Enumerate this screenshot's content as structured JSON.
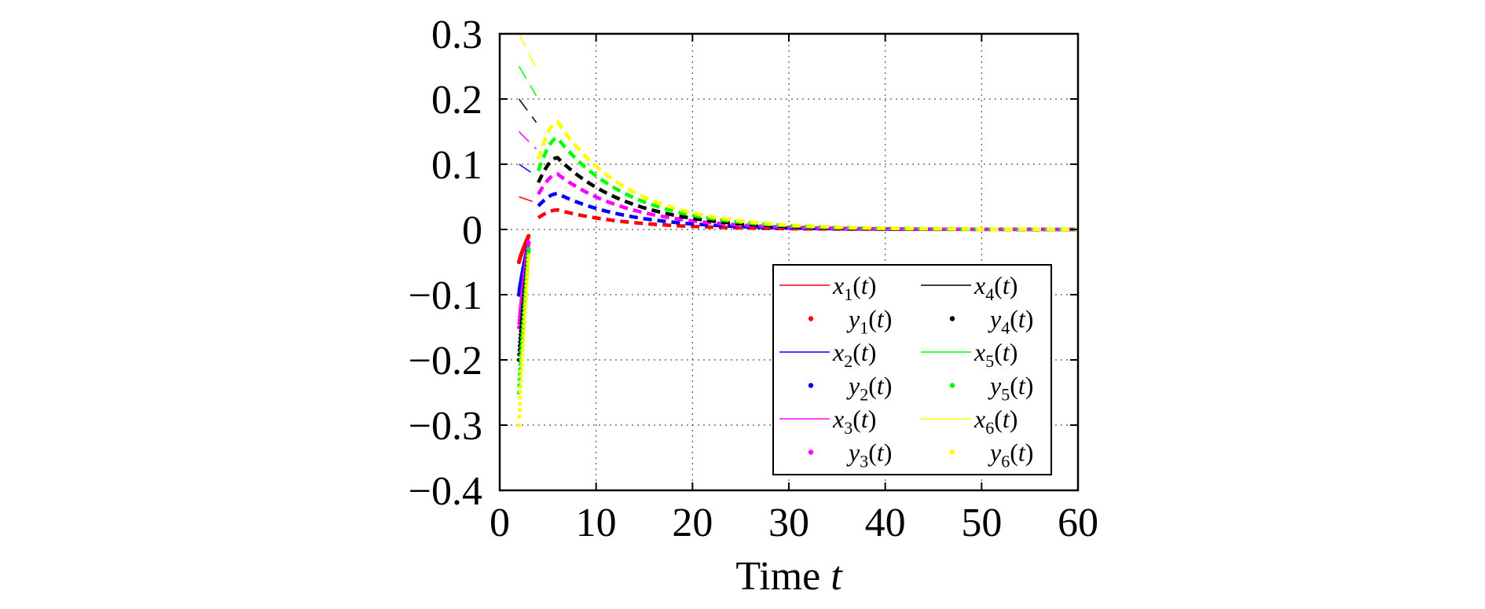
{
  "chart_data": {
    "type": "line",
    "xlabel": "Time",
    "xlabel_var": "t",
    "xlim": [
      0,
      60
    ],
    "ylim": [
      -0.4,
      0.3
    ],
    "x_ticks": [
      0,
      10,
      20,
      30,
      40,
      50,
      60
    ],
    "x_tick_labels": [
      "0",
      "10",
      "20",
      "30",
      "40",
      "50",
      "60"
    ],
    "y_ticks": [
      0.3,
      0.2,
      0.1,
      0,
      -0.1,
      -0.2,
      -0.3,
      -0.4
    ],
    "y_tick_labels": [
      "0.3",
      "0.2",
      "0.1",
      "0",
      "−0.1",
      "−0.2",
      "−0.3",
      "−0.4"
    ],
    "grid": true,
    "legend_position": "lower-right",
    "series": [
      {
        "name": "x1(t)",
        "legend_var": "x",
        "legend_sub": "1",
        "legend_arg": "t",
        "style": "line",
        "color": "#ff0000",
        "x0": 2,
        "y0": 0.05,
        "x1": 4,
        "y1": 0.04,
        "peak_t": 6,
        "peak_y": 0.03
      },
      {
        "name": "x2(t)",
        "legend_var": "x",
        "legend_sub": "2",
        "legend_arg": "t",
        "style": "line",
        "color": "#0000ff",
        "x0": 2,
        "y0": 0.1,
        "x1": 4,
        "y1": 0.08,
        "peak_t": 6,
        "peak_y": 0.055
      },
      {
        "name": "x3(t)",
        "legend_var": "x",
        "legend_sub": "3",
        "legend_arg": "t",
        "style": "line",
        "color": "#ff00ff",
        "x0": 2,
        "y0": 0.15,
        "x1": 4,
        "y1": 0.12,
        "peak_t": 6,
        "peak_y": 0.085
      },
      {
        "name": "x4(t)",
        "legend_var": "x",
        "legend_sub": "4",
        "legend_arg": "t",
        "style": "line",
        "color": "#000000",
        "x0": 2,
        "y0": 0.2,
        "x1": 4,
        "y1": 0.16,
        "peak_t": 6,
        "peak_y": 0.11
      },
      {
        "name": "x5(t)",
        "legend_var": "x",
        "legend_sub": "5",
        "legend_arg": "t",
        "style": "line",
        "color": "#00ff00",
        "x0": 2,
        "y0": 0.25,
        "x1": 4,
        "y1": 0.2,
        "peak_t": 6,
        "peak_y": 0.14
      },
      {
        "name": "x6(t)",
        "legend_var": "x",
        "legend_sub": "6",
        "legend_arg": "t",
        "style": "line",
        "color": "#ffff00",
        "x0": 2,
        "y0": 0.3,
        "x1": 4,
        "y1": 0.24,
        "peak_t": 6,
        "peak_y": 0.165
      },
      {
        "name": "y1(t)",
        "legend_var": "y",
        "legend_sub": "1",
        "legend_arg": "t",
        "style": "dots",
        "color": "#ff0000",
        "x0": 2,
        "y0": -0.05,
        "x_end": 3,
        "y_end": -0.01
      },
      {
        "name": "y2(t)",
        "legend_var": "y",
        "legend_sub": "2",
        "legend_arg": "t",
        "style": "dots",
        "color": "#0000ff",
        "x0": 2,
        "y0": -0.1,
        "x_end": 3,
        "y_end": -0.02
      },
      {
        "name": "y3(t)",
        "legend_var": "y",
        "legend_sub": "3",
        "legend_arg": "t",
        "style": "dots",
        "color": "#ff00ff",
        "x0": 2,
        "y0": -0.15,
        "x_end": 3,
        "y_end": -0.02
      },
      {
        "name": "y4(t)",
        "legend_var": "y",
        "legend_sub": "4",
        "legend_arg": "t",
        "style": "dots",
        "color": "#000000",
        "x0": 2,
        "y0": -0.2,
        "x_end": 3,
        "y_end": -0.03
      },
      {
        "name": "y5(t)",
        "legend_var": "y",
        "legend_sub": "5",
        "legend_arg": "t",
        "style": "dots",
        "color": "#00ff00",
        "x0": 2,
        "y0": -0.25,
        "x_end": 3,
        "y_end": -0.03
      },
      {
        "name": "y6(t)",
        "legend_var": "y",
        "legend_sub": "6",
        "legend_arg": "t",
        "style": "dots",
        "color": "#ffff00",
        "x0": 2,
        "y0": -0.3,
        "x_end": 3,
        "y_end": -0.04
      }
    ],
    "legend_order": [
      "x1(t)",
      "x4(t)",
      "y1(t)",
      "y4(t)",
      "x2(t)",
      "x5(t)",
      "y2(t)",
      "y5(t)",
      "x3(t)",
      "x6(t)",
      "y3(t)",
      "y6(t)"
    ],
    "t_end": 60,
    "decay_tau": 7.5
  }
}
